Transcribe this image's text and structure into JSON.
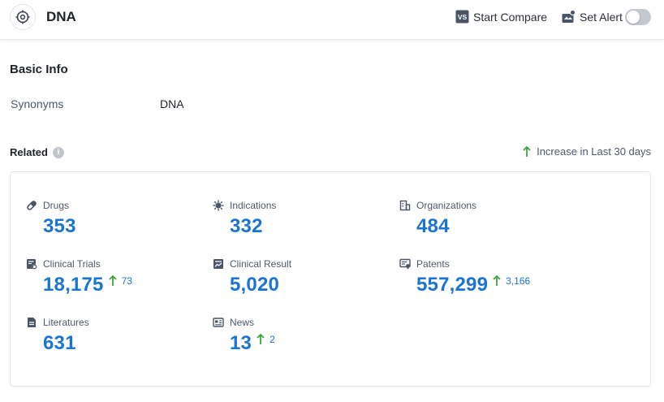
{
  "header": {
    "title": "DNA",
    "actions": {
      "start_compare": "Start Compare",
      "set_alert": "Set Alert"
    }
  },
  "basic_info": {
    "title": "Basic Info",
    "synonyms_label": "Synonyms",
    "synonyms_value": "DNA"
  },
  "related": {
    "title": "Related",
    "increase_note": "Increase in Last 30 days",
    "stats": {
      "drugs": {
        "label": "Drugs",
        "value": "353"
      },
      "indications": {
        "label": "Indications",
        "value": "332"
      },
      "organizations": {
        "label": "Organizations",
        "value": "484"
      },
      "clinical_trials": {
        "label": "Clinical Trials",
        "value": "18,175",
        "delta": "73"
      },
      "clinical_result": {
        "label": "Clinical Result",
        "value": "5,020"
      },
      "patents": {
        "label": "Patents",
        "value": "557,299",
        "delta": "3,166"
      },
      "literatures": {
        "label": "Literatures",
        "value": "631"
      },
      "news": {
        "label": "News",
        "value": "13",
        "delta": "2"
      }
    }
  },
  "colors": {
    "accent_blue": "#1a74d2",
    "increase_green": "#3aa73a",
    "icon_slate": "#4a5468"
  }
}
